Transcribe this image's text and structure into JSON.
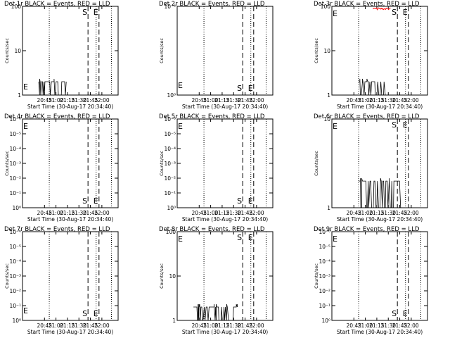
{
  "chart_data": [
    {
      "type": "line",
      "id": "p0",
      "title": "Det 1r  BLACK = Events, RED = LLD",
      "ylabel": "Counts/sec",
      "xlabel": "Start Time (30-Aug-17 20:34:40)",
      "yscale": "log",
      "ylim": [
        1,
        100
      ],
      "yticks": [
        {
          "v": 1,
          "t": "1"
        },
        {
          "v": 10,
          "t": "10"
        },
        {
          "v": 100,
          "t": "100"
        }
      ],
      "xticks": [
        "20:45",
        "21:00",
        "21:15",
        "21:30",
        "21:45",
        "22:00"
      ],
      "ranges": [
        [
          0.17,
          0.45
        ]
      ],
      "hi": 2
    },
    {
      "type": "line",
      "id": "p1",
      "title": "Det 2r  BLACK = Events, RED = LLD",
      "ylabel": "Counts/sec",
      "xlabel": "Start Time (30-Aug-17 20:34:40)",
      "yscale": "log",
      "ylim": [
        1,
        1000000
      ],
      "yticks": [
        {
          "v": 1,
          "t": "10⁰"
        },
        {
          "v": 1000000,
          "t": "10⁻⁶"
        }
      ],
      "xticks": [
        "20:45",
        "21:00",
        "21:15",
        "21:30",
        "21:45",
        "22:00"
      ],
      "ranges": [],
      "hi": 2
    },
    {
      "type": "line",
      "id": "p2",
      "title": "Det 3r  BLACK = Events, RED = LLD",
      "ylabel": "Counts/sec",
      "xlabel": "Start Time (30-Aug-17 20:34:40)",
      "yscale": "log",
      "ylim": [
        1,
        100
      ],
      "yticks": [
        {
          "v": 1,
          "t": "1"
        },
        {
          "v": 10,
          "t": "10"
        },
        {
          "v": 100,
          "t": "100"
        }
      ],
      "xticks": [
        "20:45",
        "21:00",
        "21:15",
        "21:30",
        "21:45",
        "22:00"
      ],
      "ranges": [
        [
          0.28,
          0.55
        ]
      ],
      "hi": 2
    },
    {
      "type": "line",
      "id": "p3",
      "title": "Det 4r  BLACK = Events, RED = LLD",
      "ylabel": "Counts/sec",
      "xlabel": "Start Time (30-Aug-17 20:34:40)",
      "yscale": "log",
      "ylim": [
        1,
        1000000
      ],
      "yticks": [
        {
          "v": 1,
          "t": "10⁰"
        },
        {
          "v": 10,
          "t": "10⁻¹"
        },
        {
          "v": 100,
          "t": "10⁻²"
        },
        {
          "v": 1000,
          "t": "10⁻³"
        },
        {
          "v": 10000,
          "t": "10⁻⁴"
        },
        {
          "v": 100000,
          "t": "10⁻⁵"
        },
        {
          "v": 1000000,
          "t": "10⁻⁶"
        }
      ],
      "xticks": [
        "20:45",
        "21:00",
        "21:15",
        "21:30",
        "21:45",
        "22:00"
      ],
      "ranges": [],
      "hi": 2
    },
    {
      "type": "line",
      "id": "p4",
      "title": "Det 5r  BLACK = Events, RED = LLD",
      "ylabel": "Counts/sec",
      "xlabel": "Start Time (30-Aug-17 20:34:40)",
      "yscale": "log",
      "ylim": [
        1,
        1000000
      ],
      "yticks": [
        {
          "v": 1,
          "t": "10⁰"
        },
        {
          "v": 10,
          "t": "10⁻¹"
        },
        {
          "v": 100,
          "t": "10⁻²"
        },
        {
          "v": 1000,
          "t": "10⁻³"
        },
        {
          "v": 10000,
          "t": "10⁻⁴"
        },
        {
          "v": 100000,
          "t": "10⁻⁵"
        },
        {
          "v": 1000000,
          "t": "10⁻⁶"
        }
      ],
      "xticks": [
        "20:45",
        "21:00",
        "21:15",
        "21:30",
        "21:45",
        "22:00"
      ],
      "ranges": [],
      "hi": 2
    },
    {
      "type": "line",
      "id": "p5",
      "title": "Det 6r  BLACK = Events, RED = LLD",
      "ylabel": "Counts/sec",
      "xlabel": "Start Time (30-Aug-17 20:34:40)",
      "yscale": "log",
      "ylim": [
        1,
        10
      ],
      "yticks": [
        {
          "v": 1,
          "t": "1"
        },
        {
          "v": 10,
          "t": "10"
        }
      ],
      "xticks": [
        "20:45",
        "21:00",
        "21:15",
        "21:30",
        "21:45",
        "22:00"
      ],
      "ranges": [
        [
          0.28,
          0.71
        ]
      ],
      "hi": 2
    },
    {
      "type": "line",
      "id": "p6",
      "title": "Det 7r  BLACK = Events, RED = LLD",
      "ylabel": "Counts/sec",
      "xlabel": "Start Time (30-Aug-17 20:34:40)",
      "yscale": "log",
      "ylim": [
        1,
        1000000
      ],
      "yticks": [
        {
          "v": 1,
          "t": "10⁰"
        },
        {
          "v": 10,
          "t": "10⁻¹"
        },
        {
          "v": 100,
          "t": "10⁻²"
        },
        {
          "v": 1000,
          "t": "10⁻³"
        },
        {
          "v": 10000,
          "t": "10⁻⁴"
        },
        {
          "v": 100000,
          "t": "10⁻⁵"
        },
        {
          "v": 1000000,
          "t": "10⁻⁶"
        }
      ],
      "xticks": [
        "20:45",
        "21:00",
        "21:15",
        "21:30",
        "21:45",
        "22:00"
      ],
      "ranges": [],
      "hi": 2
    },
    {
      "type": "line",
      "id": "p7",
      "title": "Det 8r  BLACK = Events, RED = LLD",
      "ylabel": "Counts/sec",
      "xlabel": "Start Time (30-Aug-17 20:34:40)",
      "yscale": "log",
      "ylim": [
        1,
        100
      ],
      "yticks": [
        {
          "v": 1,
          "t": "1"
        },
        {
          "v": 10,
          "t": "10"
        },
        {
          "v": 100,
          "t": "100"
        }
      ],
      "xticks": [
        "20:45",
        "21:00",
        "21:15",
        "21:30",
        "21:45",
        "22:00"
      ],
      "ranges": [
        [
          0.17,
          0.62
        ]
      ],
      "hi": 2
    },
    {
      "type": "line",
      "id": "p8",
      "title": "Det 9r  BLACK = Events, RED = LLD",
      "ylabel": "Counts/sec",
      "xlabel": "Start Time (30-Aug-17 20:34:40)",
      "yscale": "log",
      "ylim": [
        1,
        1000000
      ],
      "yticks": [
        {
          "v": 1,
          "t": "10⁰"
        },
        {
          "v": 10,
          "t": "10⁻¹"
        },
        {
          "v": 100,
          "t": "10⁻²"
        },
        {
          "v": 1000,
          "t": "10⁻³"
        },
        {
          "v": 10000,
          "t": "10⁻⁴"
        },
        {
          "v": 100000,
          "t": "10⁻⁵"
        },
        {
          "v": 1000000,
          "t": "10⁻⁶"
        }
      ],
      "xticks": [
        "20:45",
        "21:00",
        "21:15",
        "21:30",
        "21:45",
        "22:00"
      ],
      "ranges": [],
      "hi": 2
    }
  ],
  "markers": {
    "S": "S",
    "E": "E"
  },
  "colors": {
    "events": "#000000",
    "lld": "#ff0000"
  }
}
